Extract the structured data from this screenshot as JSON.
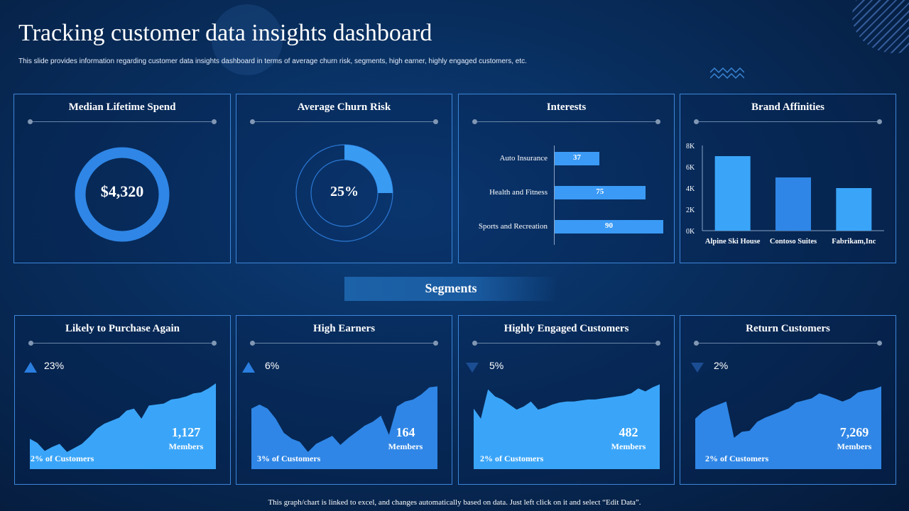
{
  "header": {
    "title": "Tracking customer data insights dashboard",
    "subtitle": "This slide provides information regarding customer data insights dashboard in terms of average churn risk, segments, high earner, highly engaged customers, etc."
  },
  "kpis": {
    "lifetime_spend": {
      "title": "Median Lifetime Spend",
      "value": "$4,320"
    },
    "churn_risk": {
      "title": "Average Churn  Risk",
      "value": "25%"
    }
  },
  "chart_data": [
    {
      "type": "bar",
      "orientation": "horizontal",
      "title": "Interests",
      "categories": [
        "Auto Insurance",
        "Health and Fitness",
        "Sports and Recreation"
      ],
      "values": [
        37,
        75,
        90
      ],
      "xlim": [
        0,
        100
      ]
    },
    {
      "type": "bar",
      "title": "Brand Affinities",
      "categories": [
        "Alpine Ski House",
        "Contoso Suites",
        "Fabrikam,Inc"
      ],
      "values": [
        7000,
        5000,
        4000
      ],
      "ylim": [
        0,
        8000
      ],
      "yticks": [
        "0K",
        "2K",
        "4K",
        "6K",
        "8K"
      ]
    },
    {
      "type": "area",
      "title": "Likely to Purchase Again",
      "values": [
        30,
        26,
        18,
        22,
        25,
        17,
        21,
        25,
        32,
        40,
        45,
        48,
        51,
        58,
        60,
        50,
        63,
        64,
        65,
        69,
        70,
        72,
        75,
        76,
        80,
        85
      ],
      "ylim": [
        0,
        90
      ]
    },
    {
      "type": "area",
      "title": "High Earners",
      "values": [
        60,
        64,
        60,
        50,
        36,
        30,
        27,
        17,
        25,
        29,
        33,
        24,
        31,
        37,
        43,
        47,
        53,
        34,
        62,
        67,
        69,
        74,
        81,
        82
      ],
      "ylim": [
        0,
        90
      ]
    },
    {
      "type": "area",
      "title": "Highly Engaged Customers",
      "values": [
        60,
        50,
        79,
        72,
        69,
        64,
        59,
        62,
        67,
        59,
        61,
        64,
        66,
        67,
        67,
        68,
        69,
        69,
        70,
        71,
        72,
        73,
        75,
        80,
        77,
        81,
        84
      ],
      "ylim": [
        0,
        90
      ]
    },
    {
      "type": "area",
      "title": "Return Customers",
      "values": [
        50,
        57,
        61,
        64,
        67,
        31,
        37,
        38,
        47,
        51,
        54,
        57,
        60,
        66,
        68,
        70,
        75,
        73,
        70,
        67,
        70,
        76,
        78,
        79,
        82
      ],
      "ylim": [
        0,
        90
      ]
    }
  ],
  "segments": {
    "heading": "Segments",
    "cards": [
      {
        "title": "Likely to Purchase Again",
        "trend": "up",
        "pct": "23%",
        "count": "1,127",
        "unit": "Members",
        "share": "2% of Customers"
      },
      {
        "title": "High Earners",
        "trend": "up",
        "pct": "6%",
        "count": "164",
        "unit": "Members",
        "share": "3% of Customers"
      },
      {
        "title": "Highly Engaged Customers",
        "trend": "down",
        "pct": "5%",
        "count": "482",
        "unit": "Members",
        "share": "2% of Customers"
      },
      {
        "title": "Return Customers",
        "trend": "down",
        "pct": "2%",
        "count": "7,269",
        "unit": "Members",
        "share": "2% of Customers"
      }
    ]
  },
  "footer": {
    "note": "This graph/chart is linked to excel,  and changes  automatically based on data. Just left click on it and select  “Edit Data”."
  },
  "colors": {
    "panel_border": "#3d86d9",
    "accent_light": "#3aa5f8",
    "accent_mid": "#2f86e6",
    "background": "#082d5c",
    "trend_up": "#2a7ee0",
    "trend_down": "#1b4d92"
  }
}
